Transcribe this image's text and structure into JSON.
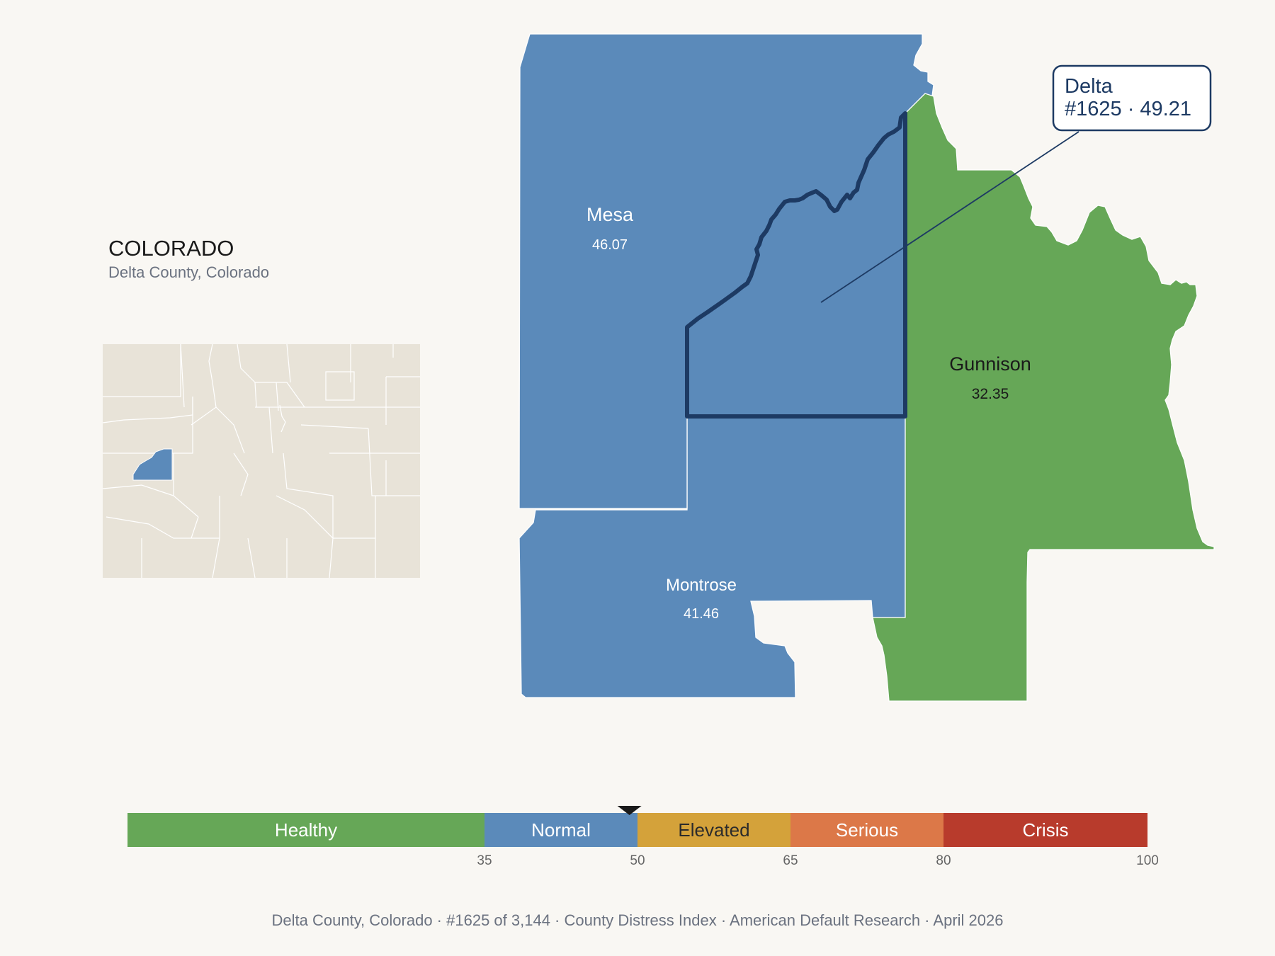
{
  "title": {
    "state": "COLORADO",
    "subtitle": "Delta County, Colorado"
  },
  "colors": {
    "normal": "#5b8aba",
    "healthy": "#66a757",
    "elevated": "#d4a23a",
    "serious": "#dc7848",
    "crisis": "#b83b2c",
    "inset_fill": "#e8e3d8",
    "outline": "#1d3a63",
    "background": "#f9f7f3"
  },
  "counties": [
    {
      "id": "mesa",
      "name": "Mesa",
      "value": "46.07",
      "category": "normal"
    },
    {
      "id": "montrose",
      "name": "Montrose",
      "value": "41.46",
      "category": "normal"
    },
    {
      "id": "gunnison",
      "name": "Gunnison",
      "value": "32.35",
      "category": "healthy"
    },
    {
      "id": "delta",
      "name": "Delta",
      "value": "49.21",
      "category": "normal"
    }
  ],
  "callout": {
    "line1": "Delta",
    "line2": "#1625 · 49.21"
  },
  "legend": {
    "score": 49.21,
    "min": 0,
    "max": 100,
    "bands": [
      {
        "label": "Healthy",
        "from": 0,
        "to": 35,
        "color": "#66a757",
        "text_color": "#ffffff"
      },
      {
        "label": "Normal",
        "from": 35,
        "to": 50,
        "color": "#5b8aba",
        "text_color": "#ffffff"
      },
      {
        "label": "Elevated",
        "from": 50,
        "to": 65,
        "color": "#d4a23a",
        "text_color": "#2b2b2b"
      },
      {
        "label": "Serious",
        "from": 65,
        "to": 80,
        "color": "#dc7848",
        "text_color": "#ffffff"
      },
      {
        "label": "Crisis",
        "from": 80,
        "to": 100,
        "color": "#b83b2c",
        "text_color": "#ffffff"
      }
    ],
    "ticks": [
      "35",
      "50",
      "65",
      "80",
      "100"
    ]
  },
  "footer": {
    "items": [
      "Delta County, Colorado",
      "#1625 of 3,144",
      "County Distress Index",
      "American Default Research",
      "April 2026"
    ],
    "separator": "·"
  }
}
